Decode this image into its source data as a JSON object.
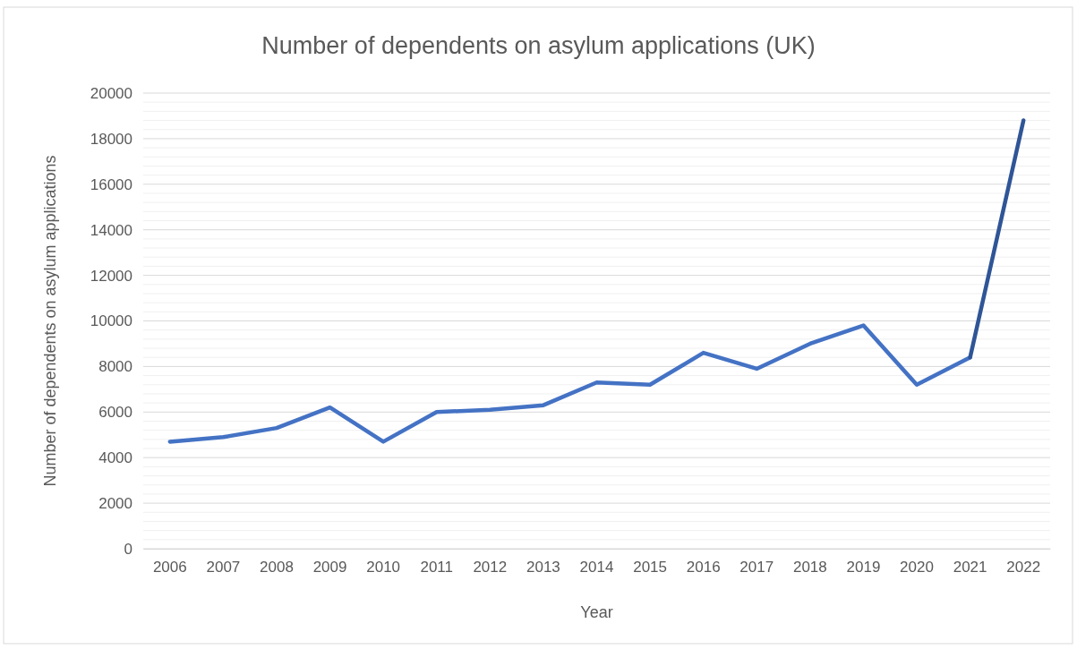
{
  "chart_data": {
    "type": "line",
    "title": "Number of dependents on asylum applications (UK)",
    "xlabel": "Year",
    "ylabel": "Number of dependents on asylum applications",
    "categories": [
      "2006",
      "2007",
      "2008",
      "2009",
      "2010",
      "2011",
      "2012",
      "2013",
      "2014",
      "2015",
      "2016",
      "2017",
      "2018",
      "2019",
      "2020",
      "2021",
      "2022"
    ],
    "series": [
      {
        "color": "#4472c4",
        "values": [
          4700,
          4900,
          5300,
          6200,
          4700,
          6000,
          6100,
          6300,
          7300,
          7200,
          8600,
          7900,
          9000,
          9800,
          7200,
          8400,
          null
        ]
      },
      {
        "color": "#2f5597",
        "values": [
          null,
          null,
          null,
          null,
          null,
          null,
          null,
          null,
          null,
          null,
          null,
          null,
          null,
          null,
          null,
          8400,
          18800
        ]
      }
    ],
    "ylim": [
      0,
      20000
    ],
    "yticks": [
      0,
      2000,
      4000,
      6000,
      8000,
      10000,
      12000,
      14000,
      16000,
      18000,
      20000
    ],
    "grid": "y",
    "marker": "none",
    "line_style": "solid"
  }
}
